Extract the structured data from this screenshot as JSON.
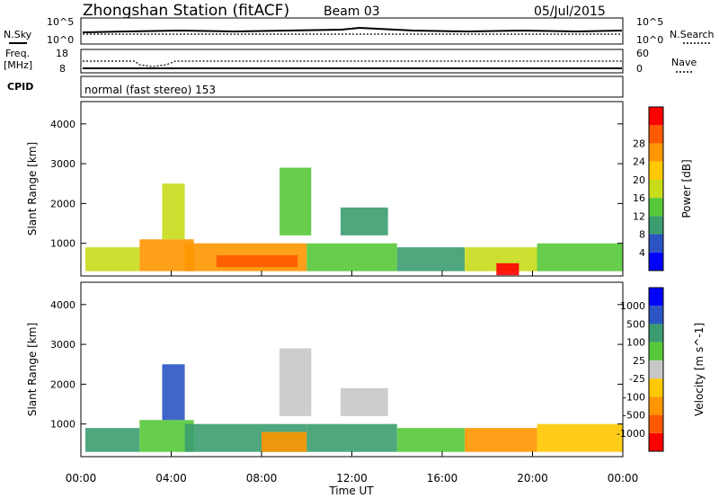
{
  "header": {
    "station": "Zhongshan Station (fitACF)",
    "beam": "Beam 03",
    "date": "05/Jul/2015"
  },
  "noise_panel": {
    "left_label": "N.Sky",
    "right_label": "N.Search",
    "left_ticks": [
      "10^5",
      "10^0"
    ],
    "right_ticks": [
      "10^5",
      "10^0"
    ]
  },
  "freq_panel": {
    "left_label": "Freq.",
    "left_unit": "[MHz]",
    "left_ticks": [
      "18",
      "8"
    ],
    "right_label": "Nave",
    "right_ticks": [
      "60",
      "0"
    ]
  },
  "cpid_panel": {
    "label": "CPID",
    "text": "normal (fast stereo) 153"
  },
  "x_axis": {
    "label": "Time UT",
    "ticks": [
      "00:00",
      "04:00",
      "08:00",
      "12:00",
      "16:00",
      "20:00",
      "00:00"
    ]
  },
  "chart_data": [
    {
      "type": "heatmap",
      "name": "power",
      "ylabel": "Slant Range [km]",
      "xlabel": "Time UT",
      "xlim": [
        0,
        24
      ],
      "ylim": [
        180,
        4560
      ],
      "y_ticks": [
        "1000",
        "2000",
        "3000",
        "4000"
      ],
      "y_tick_values": [
        1000,
        2000,
        3000,
        4000
      ],
      "colorbar": {
        "label": "Power [dB]",
        "tick_labels": [
          "4",
          "8",
          "12",
          "16",
          "20",
          "24",
          "28"
        ],
        "colors": [
          "#0000ff",
          "#2c55c4",
          "#3b9d6f",
          "#56c83a",
          "#c8dc19",
          "#ffc800",
          "#ff9600",
          "#ff5a00",
          "#ff0000"
        ]
      },
      "regions": [
        {
          "t0": 0.2,
          "t1": 2.6,
          "r0": 300,
          "r1": 900,
          "level": 4
        },
        {
          "t0": 2.6,
          "t1": 5.0,
          "r0": 300,
          "r1": 1100,
          "level": 6
        },
        {
          "t0": 3.6,
          "t1": 4.6,
          "r0": 1100,
          "r1": 2500,
          "level": 4
        },
        {
          "t0": 4.6,
          "t1": 10.0,
          "r0": 300,
          "r1": 1000,
          "level": 6
        },
        {
          "t0": 6.0,
          "t1": 9.6,
          "r0": 400,
          "r1": 700,
          "level": 7
        },
        {
          "t0": 8.8,
          "t1": 10.2,
          "r0": 1200,
          "r1": 2900,
          "level": 3
        },
        {
          "t0": 11.5,
          "t1": 13.6,
          "r0": 1200,
          "r1": 1900,
          "level": 2
        },
        {
          "t0": 10.0,
          "t1": 14.0,
          "r0": 300,
          "r1": 1000,
          "level": 3
        },
        {
          "t0": 14.0,
          "t1": 17.0,
          "r0": 300,
          "r1": 900,
          "level": 2
        },
        {
          "t0": 17.0,
          "t1": 20.2,
          "r0": 300,
          "r1": 900,
          "level": 4
        },
        {
          "t0": 18.4,
          "t1": 19.4,
          "r0": 200,
          "r1": 500,
          "level": 8
        },
        {
          "t0": 20.2,
          "t1": 24.0,
          "r0": 300,
          "r1": 1000,
          "level": 3
        }
      ]
    },
    {
      "type": "heatmap",
      "name": "velocity",
      "ylabel": "Slant Range [km]",
      "xlabel": "Time UT",
      "xlim": [
        0,
        24
      ],
      "ylim": [
        180,
        4560
      ],
      "y_ticks": [
        "1000",
        "2000",
        "3000",
        "4000"
      ],
      "y_tick_values": [
        1000,
        2000,
        3000,
        4000
      ],
      "colorbar": {
        "label": "Velocity [m s^-1]",
        "tick_labels": [
          "-1000",
          "-500",
          "-100",
          "-25",
          "25",
          "100",
          "500",
          "1000"
        ],
        "colors": [
          "#ff0000",
          "#ff5a00",
          "#ff9600",
          "#ffc800",
          "#c8c8c8",
          "#56c83a",
          "#3b9d6f",
          "#2c55c4",
          "#0000ff"
        ]
      },
      "regions": [
        {
          "t0": 0.2,
          "t1": 2.6,
          "r0": 300,
          "r1": 900,
          "level": 6
        },
        {
          "t0": 2.6,
          "t1": 5.0,
          "r0": 300,
          "r1": 1100,
          "level": 5
        },
        {
          "t0": 3.6,
          "t1": 4.6,
          "r0": 1100,
          "r1": 2500,
          "level": 7
        },
        {
          "t0": 4.6,
          "t1": 10.0,
          "r0": 300,
          "r1": 1000,
          "level": 6
        },
        {
          "t0": 8.0,
          "t1": 10.0,
          "r0": 300,
          "r1": 800,
          "level": 2
        },
        {
          "t0": 8.8,
          "t1": 10.2,
          "r0": 1200,
          "r1": 2900,
          "level": 4
        },
        {
          "t0": 11.5,
          "t1": 13.6,
          "r0": 1200,
          "r1": 1900,
          "level": 4
        },
        {
          "t0": 10.0,
          "t1": 14.0,
          "r0": 300,
          "r1": 1000,
          "level": 6
        },
        {
          "t0": 14.0,
          "t1": 17.0,
          "r0": 300,
          "r1": 900,
          "level": 5
        },
        {
          "t0": 17.0,
          "t1": 20.2,
          "r0": 300,
          "r1": 900,
          "level": 2
        },
        {
          "t0": 20.2,
          "t1": 24.0,
          "r0": 300,
          "r1": 1000,
          "level": 3
        }
      ]
    }
  ]
}
